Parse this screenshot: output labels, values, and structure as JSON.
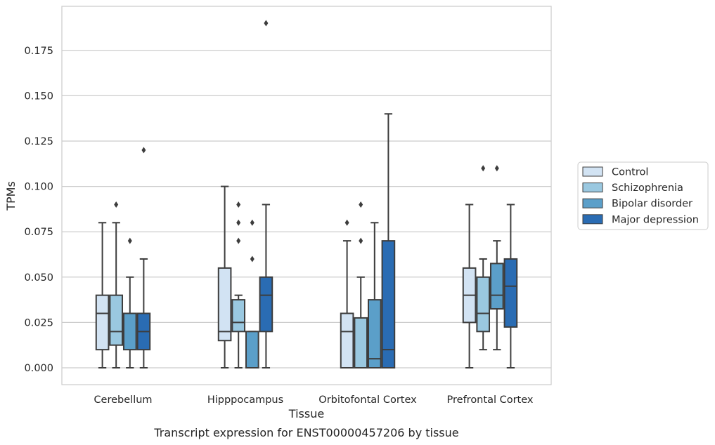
{
  "chart_data": {
    "type": "box",
    "title": "Transcript expression for ENST00000457206 by tissue",
    "xlabel": "Tissue",
    "ylabel": "TPMs",
    "ylim": [
      -0.009,
      0.198
    ],
    "yticks": [
      "0.000",
      "0.025",
      "0.050",
      "0.075",
      "0.100",
      "0.125",
      "0.150",
      "0.175"
    ],
    "ytick_values": [
      0,
      0.025,
      0.05,
      0.075,
      0.1,
      0.125,
      0.15,
      0.175
    ],
    "grid": "horizontal",
    "legend_position": "right",
    "categories": [
      "Cerebellum",
      "Hipppocampus",
      "Orbitofontal Cortex",
      "Prefrontal Cortex"
    ],
    "series": [
      {
        "name": "Control",
        "color": "#d2e3f3",
        "boxes": [
          {
            "whislo": 0.0,
            "q1": 0.01,
            "med": 0.03,
            "q3": 0.04,
            "whishi": 0.08,
            "fliers": []
          },
          {
            "whislo": 0.0,
            "q1": 0.015,
            "med": 0.02,
            "q3": 0.055,
            "whishi": 0.1,
            "fliers": []
          },
          {
            "whislo": 0.0,
            "q1": 0.0,
            "med": 0.02,
            "q3": 0.03,
            "whishi": 0.07,
            "fliers": [
              0.08
            ]
          },
          {
            "whislo": 0.0,
            "q1": 0.025,
            "med": 0.04,
            "q3": 0.055,
            "whishi": 0.09,
            "fliers": []
          }
        ]
      },
      {
        "name": "Schizophrenia",
        "color": "#9ac8e0",
        "boxes": [
          {
            "whislo": 0.0,
            "q1": 0.0125,
            "med": 0.02,
            "q3": 0.04,
            "whishi": 0.08,
            "fliers": [
              0.09
            ]
          },
          {
            "whislo": 0.0,
            "q1": 0.02,
            "med": 0.025,
            "q3": 0.0375,
            "whishi": 0.04,
            "fliers": [
              0.07,
              0.08,
              0.09
            ]
          },
          {
            "whislo": 0.0,
            "q1": 0.0,
            "med": 0.0,
            "q3": 0.0275,
            "whishi": 0.05,
            "fliers": [
              0.07,
              0.09
            ]
          },
          {
            "whislo": 0.01,
            "q1": 0.02,
            "med": 0.03,
            "q3": 0.05,
            "whishi": 0.06,
            "fliers": [
              0.11
            ]
          }
        ]
      },
      {
        "name": "Bipolar disorder",
        "color": "#5b9fc9",
        "boxes": [
          {
            "whislo": 0.0,
            "q1": 0.01,
            "med": 0.03,
            "q3": 0.03,
            "whishi": 0.05,
            "fliers": [
              0.07
            ]
          },
          {
            "whislo": 0.0,
            "q1": 0.0,
            "med": 0.0,
            "q3": 0.02,
            "whishi": 0.02,
            "fliers": [
              0.06,
              0.08
            ]
          },
          {
            "whislo": 0.0,
            "q1": 0.0,
            "med": 0.005,
            "q3": 0.0375,
            "whishi": 0.08,
            "fliers": []
          },
          {
            "whislo": 0.01,
            "q1": 0.0325,
            "med": 0.04,
            "q3": 0.0575,
            "whishi": 0.07,
            "fliers": [
              0.11
            ]
          }
        ]
      },
      {
        "name": "Major depression",
        "color": "#2a6cb3",
        "boxes": [
          {
            "whislo": 0.0,
            "q1": 0.01,
            "med": 0.02,
            "q3": 0.03,
            "whishi": 0.06,
            "fliers": [
              0.12
            ]
          },
          {
            "whislo": 0.0,
            "q1": 0.02,
            "med": 0.04,
            "q3": 0.05,
            "whishi": 0.09,
            "fliers": [
              0.19
            ]
          },
          {
            "whislo": 0.0,
            "q1": 0.0,
            "med": 0.01,
            "q3": 0.07,
            "whishi": 0.14,
            "fliers": []
          },
          {
            "whislo": 0.0,
            "q1": 0.0225,
            "med": 0.045,
            "q3": 0.06,
            "whishi": 0.09,
            "fliers": []
          }
        ]
      }
    ]
  }
}
